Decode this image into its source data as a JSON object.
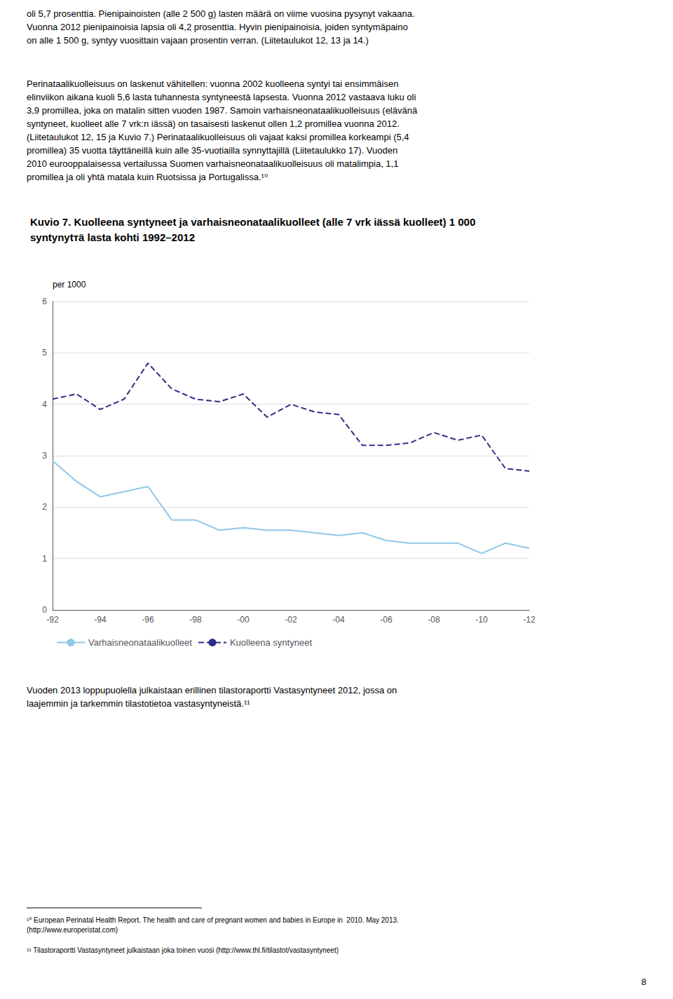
{
  "chart_data": {
    "type": "line",
    "title": "Kuvio 7. Kuolleena syntyneet ja varhaisneonataalikuolleet (alle 7 vrk iässä kuolleet) 1 000\nsyntynytтä lasta kohti 1992–2012",
    "ylabel": "per 1000",
    "categories": [
      "-92",
      null,
      "-94",
      null,
      "-96",
      null,
      "-98",
      null,
      "-00",
      null,
      "-02",
      null,
      "-04",
      null,
      "-06",
      null,
      "-08",
      null,
      "-10",
      null,
      "-12"
    ],
    "series": [
      {
        "name": "Varhaisneonataalikuolleet",
        "color": "#8ec8e8",
        "line_style": "solid",
        "values": [
          2.9,
          2.5,
          2.2,
          2.3,
          2.4,
          1.75,
          1.75,
          1.55,
          1.6,
          1.55,
          1.55,
          1.5,
          1.45,
          1.5,
          1.35,
          1.3,
          1.3,
          1.3,
          1.1,
          1.3,
          1.2
        ]
      },
      {
        "name": "Kuolleena syntyneet",
        "color": "#2e2e8b",
        "line_style": "dashed",
        "values": [
          4.1,
          4.2,
          3.9,
          4.1,
          4.8,
          4.3,
          4.1,
          4.05,
          4.2,
          3.75,
          4.0,
          3.85,
          3.8,
          3.2,
          3.2,
          3.25,
          3.45,
          3.3,
          3.4,
          2.75,
          2.7
        ]
      }
    ],
    "ylim": [
      0,
      6
    ],
    "yticks": [
      0,
      1,
      2,
      3,
      4,
      5,
      6
    ],
    "grid": true,
    "legend": "bottom",
    "text_top": "oli 5,7 prosenttia. Pienipainoisten (alle 2 500 g) lasten määrä on viime vuosina pysynyt vakaana.\nVuonna 2012 pienipainoisia lapsia oli 4,2 prosenttia. Hyvin pienipainoisia, joiden syntymäpaino\non alle 1 500 g, syntyy vuosittain vajaan prosentin verran. (Liitetaulukot 12, 13 ja 14.)",
    "text_mid": "Perinataalikuolleisuus on laskenut vähitellen: vuonna 2002 kuolleena syntyi tai ensimmäisen\nelinviikon aikana kuoli 5,6 lasta tuhannesta syntyneestä lapsesta. Vuonna 2012 vastaava luku oli\n3,9 promillea, joka on matalin sitten vuoden 1987. Samoin varhaisneonataalikuolleisuus (elävänä\nsyntyneet, kuolleet alle 7 vrk:n iässä) on tasaisesti laskenut ollen 1,2 promillea vuonna 2012.\n(Liitetaulukot 12, 15 ja Kuvio 7.) Perinataalikuolleisuus oli vajaat kaksi promillea korkeampi (5,4\npromillea) 35 vuotta täyttäneillä kuin alle 35-vuotiailla synnyttajillä (Liitetaulukko 17). Vuoden\n2010 eurooppalaisessa vertailussa Suomen varhaisneonataalikuolleisuus oli matalimpia, 1,1\npromillea ja oli yhtä matala kuin Ruotsissa ja Portugalissa.¹⁰",
    "text_bottom": "Vuoden 2013 loppupuolella julkaistaan erillinen tilastoraportti Vastasyntyneet 2012, jossa on\nlaajemmin ja tarkemmin tilastotietoa vastasyntyneistä.¹¹",
    "footnotes": [
      "¹⁰ European Perinatal Health Report. The health and care of pregnant women and babies in Europe in  2010. May 2013.\n(http://www.europeristat.com)",
      "¹¹ Tilastoraportti Vastasyntyneet julkaistaan joka toinen vuosi (http://www.thl.fi/tilastot/vastasyntyneet)"
    ],
    "page_number": "8"
  }
}
